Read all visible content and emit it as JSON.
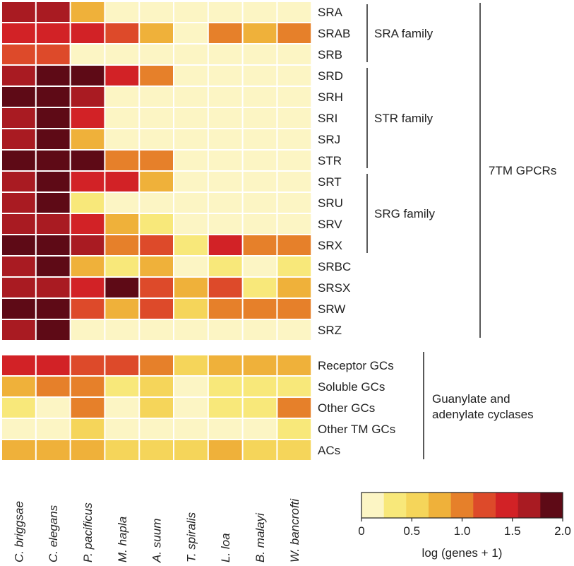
{
  "chart_data": {
    "type": "heatmap",
    "species": [
      "C. briggsae",
      "C. elegans",
      "P. pacificus",
      "M. hapla",
      "A. suum",
      "T. spiralis",
      "L. loa",
      "B. malayi",
      "W. bancrofti"
    ],
    "gpcr_rows": [
      "SRA",
      "SRAB",
      "SRB",
      "SRD",
      "SRH",
      "SRI",
      "SRJ",
      "STR",
      "SRT",
      "SRU",
      "SRV",
      "SRX",
      "SRBC",
      "SRSX",
      "SRW",
      "SRZ"
    ],
    "gpcr_values": [
      [
        1.6,
        1.75,
        0.7,
        0.2,
        0.1,
        0.1,
        0.1,
        0.1,
        0.1
      ],
      [
        1.5,
        1.5,
        1.5,
        1.3,
        0.7,
        0.2,
        0.9,
        0.7,
        0.9
      ],
      [
        1.3,
        1.3,
        0.1,
        0.1,
        0.1,
        0.1,
        0.1,
        0.1,
        0.1
      ],
      [
        1.7,
        1.95,
        1.95,
        1.5,
        1.0,
        0.1,
        0.1,
        0.1,
        0.1
      ],
      [
        1.95,
        1.95,
        1.75,
        0.1,
        0.1,
        0.1,
        0.1,
        0.1,
        0.1
      ],
      [
        1.75,
        1.95,
        1.5,
        0.1,
        0.1,
        0.1,
        0.1,
        0.1,
        0.1
      ],
      [
        1.6,
        1.85,
        0.7,
        0.1,
        0.1,
        0.1,
        0.1,
        0.1,
        0.1
      ],
      [
        1.95,
        1.95,
        1.95,
        0.9,
        0.9,
        0.1,
        0.1,
        0.1,
        0.1
      ],
      [
        1.75,
        1.95,
        1.5,
        1.5,
        0.7,
        0.1,
        0.2,
        0.1,
        0.1
      ],
      [
        1.75,
        1.85,
        0.3,
        0.1,
        0.1,
        0.1,
        0.1,
        0.1,
        0.1
      ],
      [
        1.75,
        1.6,
        1.5,
        0.7,
        0.4,
        0.1,
        0.1,
        0.1,
        0.1
      ],
      [
        1.95,
        1.95,
        1.75,
        0.9,
        1.3,
        0.3,
        1.55,
        0.9,
        0.9
      ],
      [
        1.75,
        1.95,
        0.7,
        0.3,
        0.7,
        0.1,
        0.3,
        0.2,
        0.3
      ],
      [
        1.6,
        1.75,
        1.5,
        1.95,
        1.3,
        0.7,
        1.3,
        0.3,
        0.7
      ],
      [
        1.95,
        1.95,
        1.3,
        0.7,
        1.3,
        0.5,
        0.9,
        0.9,
        0.9
      ],
      [
        1.75,
        1.95,
        0.1,
        0.1,
        0.1,
        0.2,
        0.1,
        0.1,
        0.1
      ]
    ],
    "cyclase_rows": [
      "Receptor GCs",
      "Soluble GCs",
      "Other GCs",
      "Other TM GCs",
      "ACs"
    ],
    "cyclase_values": [
      [
        1.5,
        1.5,
        1.3,
        1.3,
        1.0,
        0.5,
        0.7,
        0.7,
        0.7
      ],
      [
        0.7,
        0.9,
        0.9,
        0.3,
        0.5,
        0.2,
        0.3,
        0.3,
        0.3
      ],
      [
        0.4,
        0.1,
        0.9,
        0.2,
        0.5,
        0.15,
        0.3,
        0.3,
        1.0
      ],
      [
        0.15,
        0.1,
        0.5,
        0.1,
        0.1,
        0.1,
        0.2,
        0.2,
        0.4
      ],
      [
        0.7,
        0.7,
        0.7,
        0.5,
        0.5,
        0.5,
        0.7,
        0.5,
        0.5
      ]
    ],
    "groups": [
      {
        "label": "SRA family",
        "start_row": 0,
        "end_row": 2
      },
      {
        "label": "STR family",
        "start_row": 3,
        "end_row": 7
      },
      {
        "label": "SRG family",
        "start_row": 8,
        "end_row": 11
      }
    ],
    "outer_group_label": "7TM GPCRs",
    "cyclase_group_label": [
      "Guanylate and",
      "adenylate cyclases"
    ],
    "colorbar": {
      "title": "log (genes + 1)",
      "range": [
        0,
        2
      ],
      "tick_values": [
        0,
        0.5,
        1.0,
        1.5,
        2.0
      ],
      "tick_labels": [
        "0",
        "0.5",
        "1.0",
        "1.5",
        "2.0"
      ],
      "colors": [
        "#fcf5c4",
        "#f8e87a",
        "#f5d55a",
        "#efb13a",
        "#e6802a",
        "#dd4a2a",
        "#d22226",
        "#a91b22",
        "#5e0a16"
      ]
    }
  }
}
